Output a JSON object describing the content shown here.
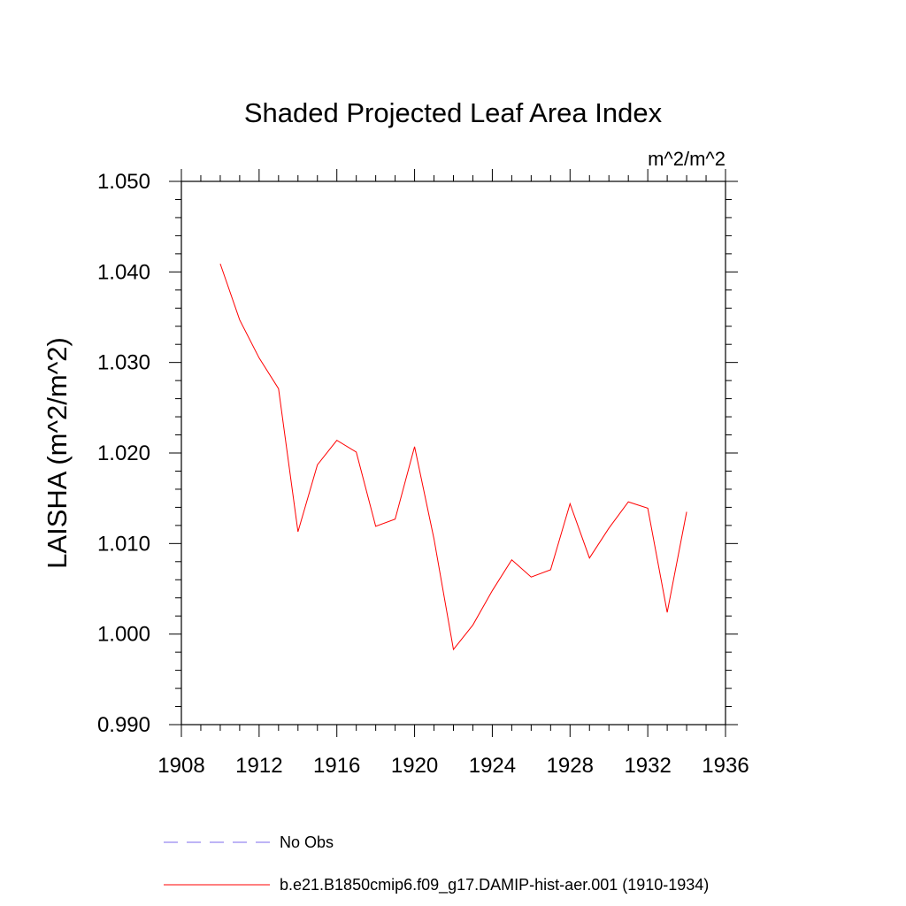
{
  "chart_data": {
    "type": "line",
    "title": "Shaded Projected Leaf Area Index",
    "units": "m^2/m^2",
    "ylabel": "LAISHA  (m^2/m^2)",
    "xlabel": "",
    "xlim": [
      1908,
      1936
    ],
    "ylim": [
      0.99,
      1.05
    ],
    "xticks": [
      1908,
      1912,
      1916,
      1920,
      1924,
      1928,
      1932,
      1936
    ],
    "xtick_labels": [
      "1908",
      "1912",
      "1916",
      "1920",
      "1924",
      "1928",
      "1932",
      "1936"
    ],
    "yticks": [
      0.99,
      1.0,
      1.01,
      1.02,
      1.03,
      1.04,
      1.05
    ],
    "ytick_labels": [
      "0.990",
      "1.000",
      "1.010",
      "1.020",
      "1.030",
      "1.040",
      "1.050"
    ],
    "grid": false,
    "legend_position": "bottom",
    "series": [
      {
        "name": "b.e21.B1850cmip6.f09_g17.DAMIP-hist-aer.001 (1910-1934)",
        "color": "#ff0000",
        "style": "solid",
        "x": [
          1910,
          1911,
          1912,
          1913,
          1914,
          1915,
          1916,
          1917,
          1918,
          1919,
          1920,
          1921,
          1922,
          1923,
          1924,
          1925,
          1926,
          1927,
          1928,
          1929,
          1930,
          1931,
          1932,
          1933,
          1934
        ],
        "values": [
          1.0409,
          1.0347,
          1.0305,
          1.0271,
          1.0113,
          1.0187,
          1.0214,
          1.0201,
          1.0119,
          1.0127,
          1.0207,
          1.0105,
          0.9983,
          1.001,
          1.0048,
          1.0082,
          1.0063,
          1.0071,
          1.0144,
          1.0084,
          1.0117,
          1.0146,
          1.0139,
          1.0024,
          1.0135
        ]
      }
    ],
    "legend": [
      {
        "label": "No Obs",
        "color": "#7b68ee",
        "style": "dashed"
      },
      {
        "label": "b.e21.B1850cmip6.f09_g17.DAMIP-hist-aer.001 (1910-1934)",
        "color": "#ff0000",
        "style": "solid"
      }
    ]
  }
}
